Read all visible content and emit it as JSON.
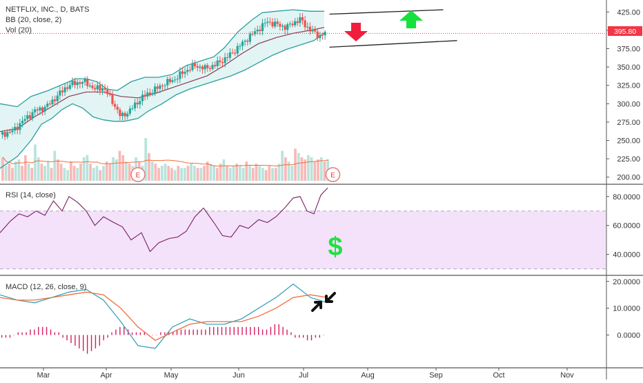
{
  "header": {
    "symbol_line": "NETFLIX, INC., D, BATS",
    "bb_line": "BB (20, close, 2)",
    "vol_line": "Vol (20)"
  },
  "price_label": "395.80",
  "earnings_marker": "E",
  "dollar_glyph": "$",
  "colors": {
    "up": "#26a69a",
    "down": "#ef5350",
    "band": "#2a9d9d",
    "band_fill": "#e3f4f4",
    "basis": "#8b3a52",
    "rsi_line": "#7b1f5e",
    "rsi_fill": "#f3e2fa",
    "macd_line": "#3aa2b8",
    "signal_line": "#f26b38",
    "hist": "#d81b60",
    "arrow_up": "#14e13c",
    "arrow_down": "#f01e3c",
    "price_tag": "#f23645"
  },
  "chart_data": [
    {
      "type": "candlestick",
      "title": "NETFLIX, INC., D, BATS",
      "y_ticks": [
        "425.00",
        "400.00",
        "375.00",
        "350.00",
        "325.00",
        "300.00",
        "275.00",
        "250.00",
        "225.00",
        "200.00"
      ],
      "ylim": [
        195,
        430
      ],
      "x_ticks": [
        "Mar",
        "Apr",
        "May",
        "Jun",
        "Jul",
        "Aug",
        "Sep",
        "Oct",
        "Nov"
      ],
      "last_price": 395.8,
      "close_path": [
        [
          0,
          258
        ],
        [
          7,
          262
        ],
        [
          14,
          278
        ],
        [
          20,
          290
        ],
        [
          27,
          296
        ],
        [
          33,
          310
        ],
        [
          38,
          322
        ],
        [
          43,
          328
        ],
        [
          49,
          330
        ],
        [
          55,
          320
        ],
        [
          60,
          322
        ],
        [
          66,
          300
        ],
        [
          70,
          282
        ],
        [
          75,
          290
        ],
        [
          82,
          308
        ],
        [
          89,
          318
        ],
        [
          95,
          327
        ],
        [
          101,
          333
        ],
        [
          107,
          344
        ],
        [
          113,
          352
        ],
        [
          119,
          348
        ],
        [
          124,
          352
        ],
        [
          131,
          362
        ],
        [
          136,
          372
        ],
        [
          143,
          388
        ],
        [
          149,
          400
        ],
        [
          155,
          412
        ],
        [
          160,
          408
        ],
        [
          166,
          404
        ],
        [
          170,
          410
        ],
        [
          174,
          415
        ],
        [
          179,
          402
        ],
        [
          185,
          392
        ],
        [
          190,
          398
        ]
      ],
      "upper_band_path": [
        [
          0,
          300
        ],
        [
          10,
          296
        ],
        [
          18,
          310
        ],
        [
          28,
          318
        ],
        [
          38,
          328
        ],
        [
          44,
          334
        ],
        [
          50,
          334
        ],
        [
          56,
          330
        ],
        [
          62,
          320
        ],
        [
          68,
          318
        ],
        [
          76,
          330
        ],
        [
          84,
          336
        ],
        [
          92,
          336
        ],
        [
          100,
          340
        ],
        [
          108,
          352
        ],
        [
          116,
          358
        ],
        [
          124,
          364
        ],
        [
          130,
          376
        ],
        [
          138,
          398
        ],
        [
          146,
          414
        ],
        [
          152,
          424
        ],
        [
          160,
          426
        ],
        [
          170,
          428
        ],
        [
          180,
          426
        ],
        [
          188,
          426
        ]
      ],
      "lower_band_path": [
        [
          0,
          212
        ],
        [
          10,
          228
        ],
        [
          18,
          250
        ],
        [
          24,
          272
        ],
        [
          30,
          280
        ],
        [
          36,
          292
        ],
        [
          42,
          300
        ],
        [
          48,
          294
        ],
        [
          54,
          282
        ],
        [
          60,
          278
        ],
        [
          66,
          276
        ],
        [
          72,
          276
        ],
        [
          80,
          280
        ],
        [
          86,
          290
        ],
        [
          94,
          300
        ],
        [
          102,
          312
        ],
        [
          110,
          320
        ],
        [
          118,
          326
        ],
        [
          126,
          332
        ],
        [
          134,
          338
        ],
        [
          142,
          346
        ],
        [
          150,
          356
        ],
        [
          158,
          366
        ],
        [
          166,
          374
        ],
        [
          174,
          380
        ],
        [
          182,
          386
        ],
        [
          188,
          396
        ]
      ],
      "basis_path": [
        [
          0,
          262
        ],
        [
          10,
          266
        ],
        [
          20,
          282
        ],
        [
          30,
          296
        ],
        [
          40,
          310
        ],
        [
          50,
          316
        ],
        [
          60,
          316
        ],
        [
          70,
          310
        ],
        [
          80,
          308
        ],
        [
          90,
          314
        ],
        [
          100,
          322
        ],
        [
          110,
          330
        ],
        [
          120,
          338
        ],
        [
          130,
          352
        ],
        [
          140,
          368
        ],
        [
          150,
          382
        ],
        [
          160,
          390
        ],
        [
          170,
          396
        ],
        [
          180,
          400
        ],
        [
          188,
          404
        ]
      ],
      "earnings_markers_day": [
        80,
        193
      ],
      "trend_lines": [
        {
          "from": [
            191,
            422
          ],
          "to": [
            257,
            428
          ]
        },
        {
          "from": [
            191,
            377
          ],
          "to": [
            265,
            386
          ]
        }
      ],
      "annotations": [
        "arrow-up",
        "arrow-down"
      ]
    },
    {
      "type": "bar",
      "name": "Vol (20)",
      "values_relative": [
        0.55,
        0.35,
        0.4,
        0.3,
        0.45,
        0.5,
        0.35,
        0.6,
        0.4,
        0.3,
        0.85,
        0.55,
        0.4,
        0.35,
        0.45,
        0.3,
        0.7,
        0.5,
        0.4,
        0.3,
        0.25,
        0.45,
        0.35,
        0.3,
        0.4,
        0.55,
        0.6,
        0.4,
        0.3,
        0.35,
        0.25,
        0.35,
        0.45,
        0.4,
        0.55,
        0.5,
        0.7,
        0.6,
        0.45,
        0.4,
        0.35,
        0.55,
        0.45,
        0.35,
        1.0,
        0.65,
        0.45,
        0.4,
        0.3,
        0.35,
        0.4,
        0.35,
        0.3,
        0.25,
        0.35,
        0.3,
        0.3,
        0.35,
        0.4,
        0.35,
        0.3,
        0.3,
        0.35,
        0.45,
        0.4,
        0.35,
        0.3,
        0.4,
        0.5,
        0.35,
        0.3,
        0.35,
        0.4,
        0.35,
        0.3,
        0.45,
        0.35,
        0.3,
        0.4,
        0.35,
        0.3,
        0.25,
        0.35,
        0.3,
        0.3,
        0.4,
        0.7,
        0.55,
        0.45,
        0.35,
        0.75,
        0.65,
        0.55,
        0.5,
        0.6,
        0.55,
        0.45,
        0.5,
        0.55,
        0.45,
        0.5
      ]
    },
    {
      "type": "line",
      "name": "RSI (14, close)",
      "y_ticks": [
        "80.0000",
        "60.0000",
        "40.0000"
      ],
      "ylim": [
        26,
        88
      ],
      "band": [
        30,
        70
      ],
      "x": [
        0,
        6,
        11,
        16,
        21,
        26,
        31,
        36,
        40,
        45,
        50,
        55,
        60,
        66,
        71,
        76,
        82,
        87,
        92,
        98,
        103,
        108,
        113,
        118,
        124,
        129,
        134,
        139,
        144,
        150,
        155,
        160,
        165,
        170,
        174,
        178,
        182,
        186,
        190
      ],
      "values": [
        55,
        63,
        68,
        66,
        70,
        67,
        77,
        70,
        80,
        76,
        70,
        60,
        66,
        62,
        59,
        50,
        55,
        42,
        48,
        51,
        52,
        56,
        66,
        72,
        62,
        53,
        52,
        60,
        58,
        64,
        62,
        66,
        72,
        79,
        80,
        70,
        68,
        81,
        86
      ]
    },
    {
      "type": "line",
      "name": "MACD (12, 26, close, 9)",
      "y_ticks": [
        "20.0000",
        "10.0000",
        "0.0000"
      ],
      "ylim": [
        -12,
        22
      ],
      "series": [
        {
          "name": "MACD",
          "x": [
            0,
            10,
            20,
            30,
            40,
            50,
            60,
            70,
            80,
            90,
            100,
            110,
            120,
            130,
            140,
            150,
            160,
            170,
            180,
            190
          ],
          "values": [
            15,
            13,
            12,
            14,
            16,
            17,
            13,
            5,
            -4,
            -5,
            3,
            6,
            4,
            4,
            6,
            10,
            14,
            19,
            14,
            12
          ]
        },
        {
          "name": "Signal",
          "x": [
            0,
            10,
            20,
            30,
            40,
            50,
            60,
            70,
            80,
            90,
            100,
            110,
            120,
            130,
            140,
            150,
            160,
            170,
            180,
            190
          ],
          "values": [
            14,
            13,
            13,
            14,
            15,
            16,
            15,
            10,
            3,
            -2,
            1,
            4,
            5,
            5,
            5,
            7,
            10,
            14,
            15,
            14
          ]
        }
      ],
      "histogram": [
        -1,
        -1,
        -1,
        0,
        1,
        1,
        1,
        2,
        2,
        3,
        3,
        3,
        2,
        1,
        1,
        -1,
        -2,
        -3,
        -4,
        -5,
        -6,
        -7,
        -6,
        -5,
        -4,
        -2,
        -1,
        1,
        2,
        3,
        3,
        2,
        1,
        1,
        1,
        1,
        0,
        0,
        0,
        1,
        1,
        1,
        1,
        2,
        2,
        2,
        2,
        2,
        2,
        2,
        2,
        3,
        3,
        3,
        3,
        3,
        3,
        3,
        3,
        3,
        3,
        3,
        3,
        3,
        2,
        2,
        3,
        4,
        4,
        3,
        2,
        1,
        -1,
        -1,
        -1,
        -2,
        -2,
        -1,
        -1,
        0
      ]
    }
  ]
}
